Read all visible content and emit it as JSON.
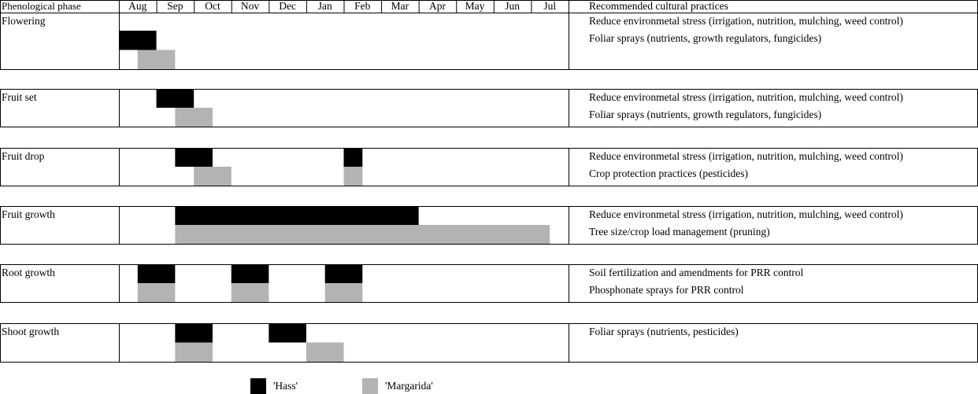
{
  "chart_data": {
    "type": "gantt",
    "phase_header": "Phenological phase",
    "practices_header": "Recommended cultural practices",
    "categories": [
      "Aug",
      "Sep",
      "Oct",
      "Nov",
      "Dec",
      "Jan",
      "Feb",
      "Mar",
      "Apr",
      "May",
      "Jun",
      "Jul"
    ],
    "xlim": [
      0,
      12
    ],
    "rows": [
      {
        "phase": "Flowering",
        "practices": [
          "Reduce environmetal stress (irrigation, nutrition, mulching, weed control)",
          "Foliar sprays (nutrients, growth regulators, fungicides)"
        ]
      },
      {
        "phase": "Fruit set",
        "practices": [
          "Reduce environmetal stress (irrigation, nutrition, mulching, weed control)",
          "Foliar sprays (nutrients, growth regulators, fungicides)"
        ]
      },
      {
        "phase": "Fruit drop",
        "practices": [
          "Reduce environmetal stress (irrigation, nutrition, mulching, weed control)",
          "Crop protection practices (pesticides)"
        ]
      },
      {
        "phase": "Fruit growth",
        "practices": [
          "Reduce environmetal stress (irrigation, nutrition, mulching, weed control)",
          "Tree size/crop load management (pruning)"
        ]
      },
      {
        "phase": "Root growth",
        "practices": [
          "Soil fertilization and amendments for PRR control",
          "Phosphonate sprays for PRR control"
        ]
      },
      {
        "phase": "Shoot growth",
        "practices": [
          "Foliar sprays (nutrients, pesticides)"
        ]
      }
    ],
    "series": [
      {
        "name": "'Hass'",
        "color": "#000000",
        "bars": [
          [
            [
              0,
              1
            ]
          ],
          [
            [
              1,
              2
            ]
          ],
          [
            [
              1.5,
              2.5
            ],
            [
              6,
              6.5
            ]
          ],
          [
            [
              1.5,
              8
            ]
          ],
          [
            [
              0.5,
              1.5
            ],
            [
              3,
              4
            ],
            [
              5.5,
              6.5
            ]
          ],
          [
            [
              1.5,
              2.5
            ],
            [
              4,
              5
            ]
          ]
        ]
      },
      {
        "name": "'Margarida'",
        "color": "#b3b3b3",
        "bars": [
          [
            [
              0.5,
              1.5
            ]
          ],
          [
            [
              1.5,
              2.5
            ]
          ],
          [
            [
              2,
              3
            ],
            [
              6,
              6.5
            ]
          ],
          [
            [
              1.5,
              11.5
            ]
          ],
          [
            [
              0.5,
              1.5
            ],
            [
              3,
              4
            ],
            [
              5.5,
              6.5
            ]
          ],
          [
            [
              1.5,
              2.5
            ],
            [
              5,
              6
            ]
          ]
        ]
      }
    ]
  }
}
